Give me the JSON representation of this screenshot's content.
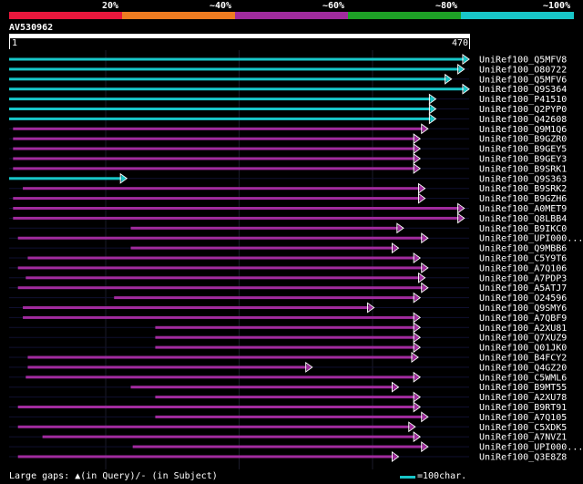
{
  "legend": {
    "labels": [
      "20%",
      "~40%",
      "~60%",
      "~80%",
      "~100%"
    ],
    "colors": [
      "#e8173c",
      "#ee7c21",
      "#a12b9e",
      "#1ea026",
      "#18c6c8"
    ]
  },
  "query": {
    "name": "AV530962",
    "start": "1",
    "end": "470",
    "length": 470
  },
  "hits": [
    {
      "name": "UniRef100_Q5MFV8",
      "start": 1,
      "end": 470,
      "id": 100
    },
    {
      "name": "UniRef100_O80722",
      "start": 1,
      "end": 465,
      "id": 100
    },
    {
      "name": "UniRef100_Q5MFV6",
      "start": 1,
      "end": 452,
      "id": 100
    },
    {
      "name": "UniRef100_Q9S364",
      "start": 1,
      "end": 470,
      "id": 100
    },
    {
      "name": "UniRef100_P41510",
      "start": 1,
      "end": 436,
      "id": 100
    },
    {
      "name": "UniRef100_Q2PYP0",
      "start": 1,
      "end": 436,
      "id": 100
    },
    {
      "name": "UniRef100_Q42608",
      "start": 1,
      "end": 436,
      "id": 100
    },
    {
      "name": "UniRef100_Q9M1Q6",
      "start": 5,
      "end": 428,
      "id": 60
    },
    {
      "name": "UniRef100_B9GZR0",
      "start": 5,
      "end": 420,
      "id": 60
    },
    {
      "name": "UniRef100_B9GEY5",
      "start": 5,
      "end": 420,
      "id": 60
    },
    {
      "name": "UniRef100_B9GEY3",
      "start": 5,
      "end": 420,
      "id": 60
    },
    {
      "name": "UniRef100_B9SRK1",
      "start": 5,
      "end": 420,
      "id": 60
    },
    {
      "name": "UniRef100_Q9S363",
      "start": 1,
      "end": 121,
      "id": 100
    },
    {
      "name": "UniRef100_B9SRK2",
      "start": 15,
      "end": 425,
      "id": 60
    },
    {
      "name": "UniRef100_B9GZH6",
      "start": 5,
      "end": 425,
      "id": 60
    },
    {
      "name": "UniRef100_A0MET9",
      "start": 5,
      "end": 465,
      "id": 60
    },
    {
      "name": "UniRef100_Q8LBB4",
      "start": 5,
      "end": 465,
      "id": 60
    },
    {
      "name": "UniRef100_B9IKC0",
      "start": 125,
      "end": 403,
      "id": 60
    },
    {
      "name": "UniRef100_UPI000...",
      "start": 10,
      "end": 428,
      "id": 60
    },
    {
      "name": "UniRef100_Q9MBB6",
      "start": 125,
      "end": 398,
      "id": 60
    },
    {
      "name": "UniRef100_C5Y9T6",
      "start": 20,
      "end": 420,
      "id": 60
    },
    {
      "name": "UniRef100_A7Q106",
      "start": 10,
      "end": 428,
      "id": 60
    },
    {
      "name": "UniRef100_A7PDP3",
      "start": 18,
      "end": 425,
      "id": 60
    },
    {
      "name": "UniRef100_A5ATJ7",
      "start": 10,
      "end": 428,
      "id": 60
    },
    {
      "name": "UniRef100_O24596",
      "start": 108,
      "end": 420,
      "id": 60
    },
    {
      "name": "UniRef100_Q9SMY6",
      "start": 15,
      "end": 373,
      "id": 60
    },
    {
      "name": "UniRef100_A7QBF9",
      "start": 15,
      "end": 420,
      "id": 60
    },
    {
      "name": "UniRef100_A2XU81",
      "start": 150,
      "end": 420,
      "id": 60
    },
    {
      "name": "UniRef100_Q7XUZ9",
      "start": 150,
      "end": 420,
      "id": 60
    },
    {
      "name": "UniRef100_Q01JK0",
      "start": 150,
      "end": 420,
      "id": 60
    },
    {
      "name": "UniRef100_B4FCY2",
      "start": 20,
      "end": 418,
      "id": 60
    },
    {
      "name": "UniRef100_Q4GZ20",
      "start": 20,
      "end": 310,
      "id": 60
    },
    {
      "name": "UniRef100_C5WML6",
      "start": 18,
      "end": 420,
      "id": 60
    },
    {
      "name": "UniRef100_B9MT55",
      "start": 125,
      "end": 398,
      "id": 60
    },
    {
      "name": "UniRef100_A2XU78",
      "start": 150,
      "end": 420,
      "id": 60
    },
    {
      "name": "UniRef100_B9RT91",
      "start": 10,
      "end": 420,
      "id": 60
    },
    {
      "name": "UniRef100_A7Q105",
      "start": 150,
      "end": 428,
      "id": 60
    },
    {
      "name": "UniRef100_C5XDK5",
      "start": 10,
      "end": 415,
      "id": 60
    },
    {
      "name": "UniRef100_A7NVZ1",
      "start": 35,
      "end": 420,
      "id": 60
    },
    {
      "name": "UniRef100_UPI000...",
      "start": 127,
      "end": 428,
      "id": 60
    },
    {
      "name": "UniRef100_Q3E8Z8",
      "start": 10,
      "end": 398,
      "id": 60
    }
  ],
  "footer": {
    "gap_note": "Large gaps: ▲(in Query)/‐ (in Subject)",
    "scale_label": "=100char."
  }
}
